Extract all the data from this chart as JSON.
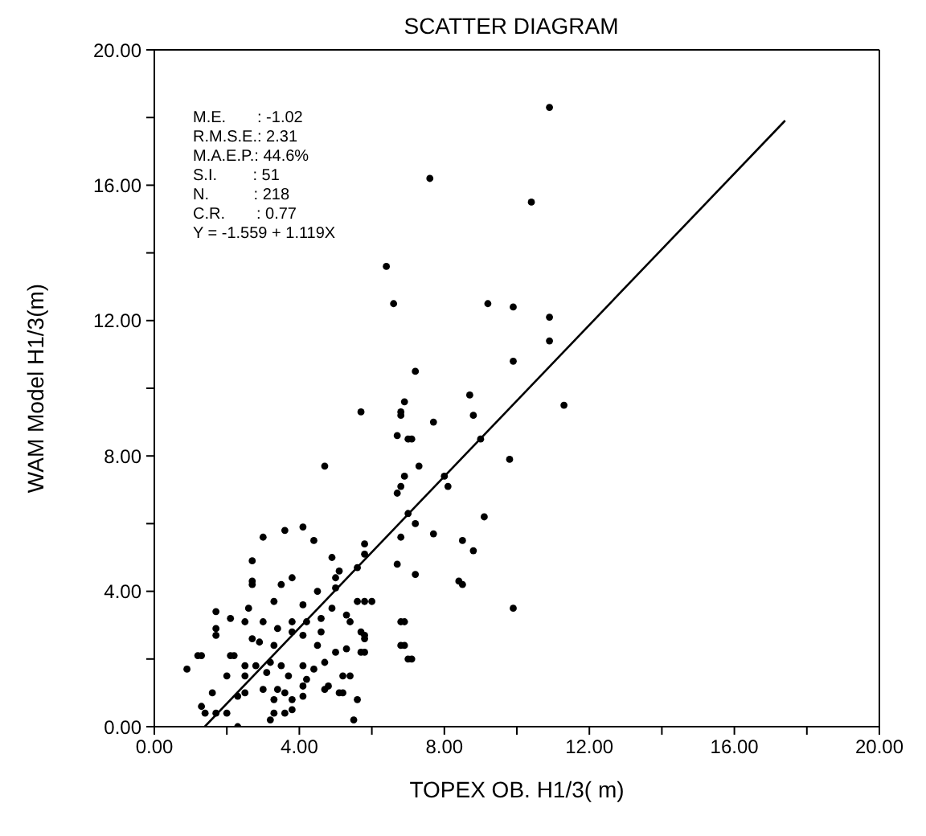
{
  "chart_data": {
    "type": "scatter",
    "title": "SCATTER DIAGRAM",
    "xlabel": "TOPEX OB. H1/3( m)",
    "ylabel": "WAM Model H1/3(m)",
    "xlim": [
      0,
      20
    ],
    "ylim": [
      0,
      20
    ],
    "xticks": [
      {
        "value": 0,
        "label": "0.00"
      },
      {
        "value": 2,
        "label": null
      },
      {
        "value": 4,
        "label": "4.00"
      },
      {
        "value": 6,
        "label": null
      },
      {
        "value": 8,
        "label": "8.00"
      },
      {
        "value": 10,
        "label": null
      },
      {
        "value": 12,
        "label": "12.00"
      },
      {
        "value": 14,
        "label": null
      },
      {
        "value": 16,
        "label": "16.00"
      },
      {
        "value": 18,
        "label": null
      },
      {
        "value": 20,
        "label": "20.00"
      }
    ],
    "yticks": [
      {
        "value": 0,
        "label": "0.00"
      },
      {
        "value": 2,
        "label": null
      },
      {
        "value": 4,
        "label": "4.00"
      },
      {
        "value": 6,
        "label": null
      },
      {
        "value": 8,
        "label": "8.00"
      },
      {
        "value": 10,
        "label": null
      },
      {
        "value": 12,
        "label": "12.00"
      },
      {
        "value": 14,
        "label": null
      },
      {
        "value": 16,
        "label": "16.00"
      },
      {
        "value": 18,
        "label": null
      },
      {
        "value": 20,
        "label": "20.00"
      }
    ],
    "grid": false,
    "legend": false,
    "marker": "circle",
    "annotations": [
      "M.E.       : -1.02",
      "R.M.S.E.: 2.31",
      "M.A.E.P.: 44.6%",
      "S.I.        : 51",
      "N.          : 218",
      "C.R.       : 0.77",
      "Y = -1.559 + 1.119X"
    ],
    "series": [
      {
        "type": "scatter",
        "color": "#000000",
        "x": [
          10.9,
          10.4,
          7.6,
          6.4,
          6.6,
          9.2,
          9.9,
          10.9,
          10.9,
          9.9,
          8.7,
          8.8,
          9.0,
          11.3,
          9.8,
          9.1,
          9.9,
          8.5,
          7.2,
          6.9,
          6.8,
          6.8,
          5.7,
          7.7,
          6.7,
          7.0,
          7.1,
          4.7,
          7.3,
          6.9,
          6.8,
          6.7,
          8.0,
          8.1,
          7.0,
          7.2,
          7.7,
          6.8,
          8.5,
          8.8,
          3.0,
          3.6,
          4.1,
          4.4,
          5.8,
          5.8,
          4.9,
          2.7,
          2.7,
          5.6,
          5.1,
          6.7,
          7.2,
          8.4,
          3.8,
          3.5,
          2.7,
          5.0,
          5.0,
          3.3,
          4.1,
          4.5,
          4.9,
          5.3,
          5.8,
          2.6,
          1.7,
          2.1,
          2.5,
          3.0,
          3.4,
          3.8,
          4.2,
          4.6,
          5.4,
          1.7,
          1.7,
          3.8,
          4.1,
          4.6,
          5.7,
          5.8,
          6.8,
          2.7,
          2.9,
          3.3,
          4.5,
          5.0,
          5.3,
          5.7,
          6.8,
          1.2,
          2.1,
          2.2,
          2.5,
          2.8,
          3.2,
          3.5,
          4.1,
          4.7,
          7.0,
          0.9,
          2.0,
          2.5,
          3.1,
          4.4,
          3.7,
          4.2,
          5.2,
          5.4,
          1.6,
          2.3,
          2.5,
          3.0,
          3.4,
          3.6,
          4.1,
          4.7,
          5.1,
          1.3,
          1.4,
          1.7,
          2.0,
          2.3,
          3.2,
          3.3,
          3.6,
          3.8,
          3.3,
          3.8,
          4.1,
          5.5,
          5.6,
          5.2,
          4.8,
          6.9,
          6.9,
          7.1,
          6.0,
          5.6,
          5.8,
          5.8,
          1.3
        ],
        "values": [
          18.3,
          15.5,
          16.2,
          13.6,
          12.5,
          12.5,
          12.4,
          12.1,
          11.4,
          10.8,
          9.8,
          9.2,
          8.5,
          9.5,
          7.9,
          6.2,
          3.5,
          4.2,
          10.5,
          9.6,
          9.3,
          9.2,
          9.3,
          9.0,
          8.6,
          8.5,
          8.5,
          7.7,
          7.7,
          7.4,
          7.1,
          6.9,
          7.4,
          7.1,
          6.3,
          6.0,
          5.7,
          5.6,
          5.5,
          5.2,
          5.6,
          5.8,
          5.9,
          5.5,
          5.4,
          5.1,
          5.0,
          4.9,
          4.3,
          4.7,
          4.6,
          4.8,
          4.5,
          4.3,
          4.4,
          4.2,
          4.2,
          4.4,
          4.1,
          3.7,
          3.6,
          4.0,
          3.5,
          3.3,
          3.7,
          3.5,
          3.4,
          3.2,
          3.1,
          3.1,
          2.9,
          3.1,
          3.1,
          3.2,
          3.1,
          2.9,
          2.7,
          2.8,
          2.7,
          2.8,
          2.8,
          2.6,
          3.1,
          2.6,
          2.5,
          2.4,
          2.4,
          2.2,
          2.3,
          2.2,
          2.4,
          2.1,
          2.1,
          2.1,
          1.8,
          1.8,
          1.9,
          1.8,
          1.8,
          1.9,
          2.0,
          1.7,
          1.5,
          1.5,
          1.6,
          1.7,
          1.5,
          1.4,
          1.5,
          1.5,
          1.0,
          0.9,
          1.0,
          1.1,
          1.1,
          1.0,
          1.2,
          1.1,
          1.0,
          0.6,
          0.4,
          0.4,
          0.4,
          0.0,
          0.2,
          0.4,
          0.4,
          0.5,
          0.8,
          0.8,
          0.9,
          0.2,
          0.8,
          1.0,
          1.2,
          3.1,
          2.4,
          2.0,
          3.7,
          3.7,
          2.7,
          2.2,
          2.1
        ]
      },
      {
        "type": "line",
        "color": "#000000",
        "marker": "none",
        "line_style": "solid",
        "x": [
          1.39,
          17.4
        ],
        "values": [
          0,
          17.91
        ]
      }
    ]
  }
}
